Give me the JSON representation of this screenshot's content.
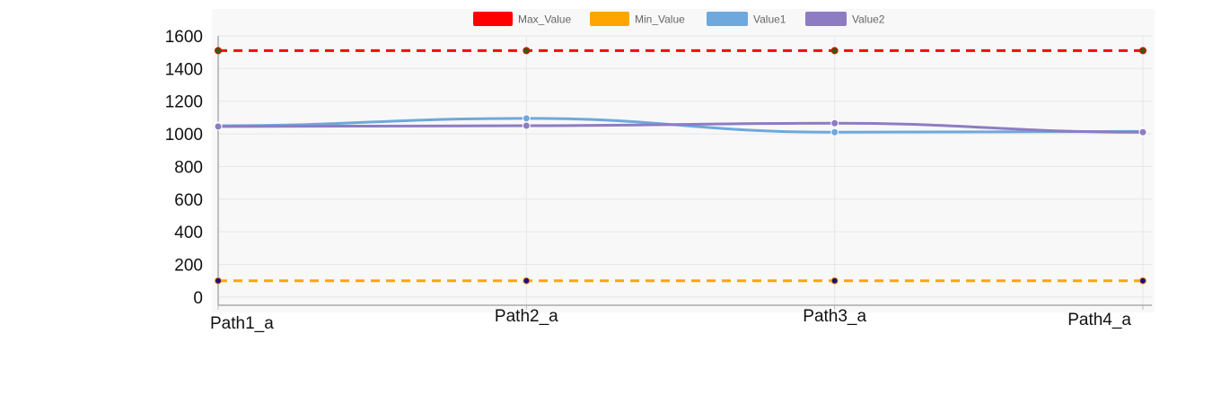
{
  "chart_data": {
    "type": "line",
    "title": "",
    "xlabel": "",
    "ylabel": "",
    "categories": [
      "Path1_a",
      "Path2_a",
      "Path3_a",
      "Path4_a"
    ],
    "yticks": [
      "1600",
      "1400",
      "1200",
      "1000",
      "800",
      "600",
      "400",
      "200",
      "0"
    ],
    "ylim": [
      -50,
      1600
    ],
    "grid": true,
    "legend_position": "top",
    "series": [
      {
        "name": "Max_Value",
        "values": [
          1510,
          1510,
          1510,
          1510
        ],
        "color": "#ff0000",
        "style": "dashed",
        "marker_color": "#2e5d14"
      },
      {
        "name": "Min_Value",
        "values": [
          100,
          100,
          100,
          100
        ],
        "color": "#ffa500",
        "style": "dashed",
        "marker_color": "#1a0f8a"
      },
      {
        "name": "Value1",
        "values": [
          1050,
          1095,
          1010,
          1015
        ],
        "color": "#6fa8dc",
        "style": "smooth"
      },
      {
        "name": "Value2",
        "values": [
          1045,
          1050,
          1065,
          1010
        ],
        "color": "#8e7cc3",
        "style": "smooth"
      }
    ]
  }
}
